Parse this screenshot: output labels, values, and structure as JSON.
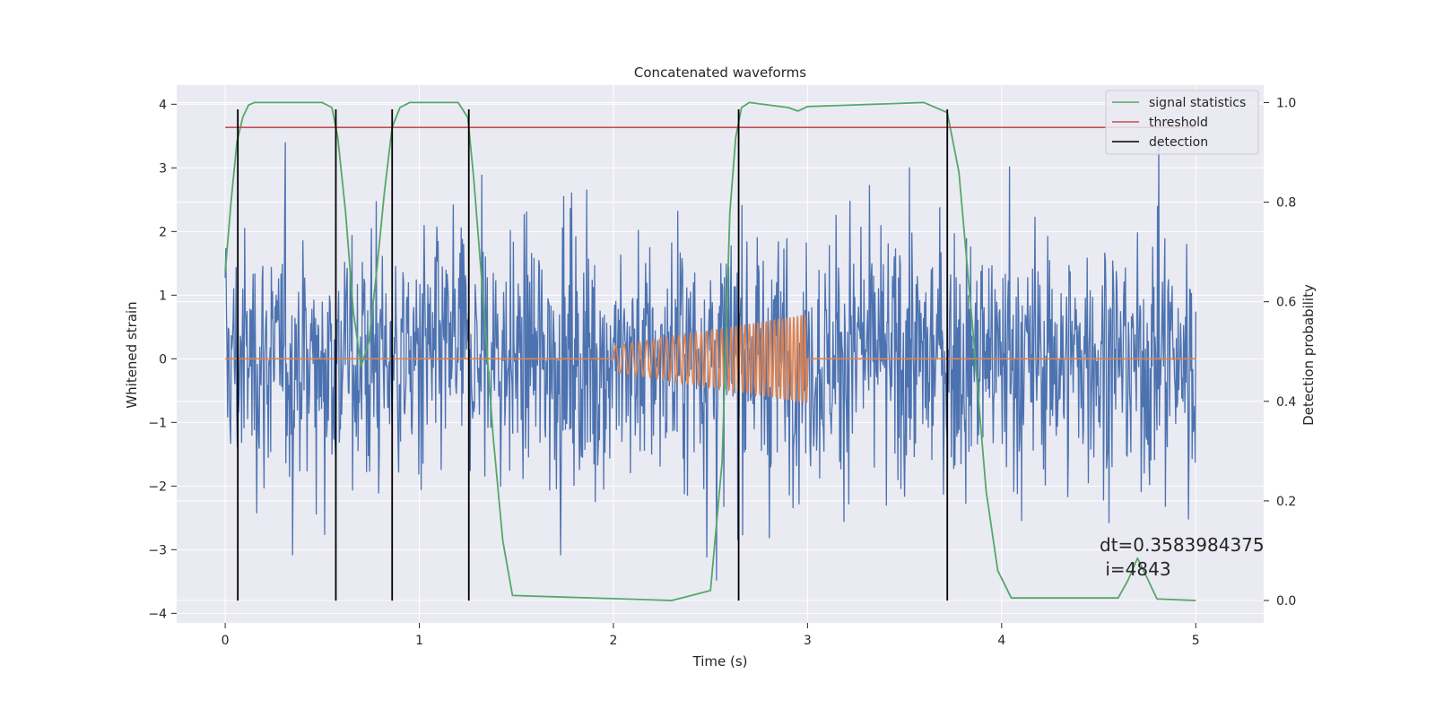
{
  "chart_data": {
    "type": "line",
    "title": "Concatenated waveforms",
    "xlabel": "Time (s)",
    "ylabel": "Whitened strain",
    "y2label": "Detection probability",
    "xlim": [
      -0.25,
      5.35
    ],
    "ylim": [
      -4.15,
      4.3
    ],
    "y2lim": [
      -0.045,
      1.035
    ],
    "xticks": [
      0,
      1,
      2,
      3,
      4,
      5
    ],
    "yticks": [
      -4,
      -3,
      -2,
      -1,
      0,
      1,
      2,
      3,
      4
    ],
    "y2ticks": [
      0.0,
      0.2,
      0.4,
      0.6,
      0.8,
      1.0
    ],
    "x_tick_labels": [
      "0",
      "1",
      "2",
      "3",
      "4",
      "5"
    ],
    "y_tick_labels": [
      "−4",
      "−3",
      "−2",
      "−1",
      "0",
      "1",
      "2",
      "3",
      "4"
    ],
    "y2_tick_labels": [
      "0.0",
      "0.2",
      "0.4",
      "0.6",
      "0.8",
      "1.0"
    ],
    "grid": true,
    "legend_position": "top-right",
    "colors": {
      "strain": "#4c72b0",
      "injected": "#dd8452",
      "signal_statistics": "#55a868",
      "threshold": "#c44e52",
      "detection": "#000000",
      "plot_bg": "#eaeaf2",
      "grid": "#ffffff"
    },
    "legend": [
      {
        "label": "signal statistics",
        "color": "#55a868"
      },
      {
        "label": "threshold",
        "color": "#c44e52"
      },
      {
        "label": "detection",
        "color": "#000000"
      }
    ],
    "strain": {
      "x_range": [
        0,
        5
      ],
      "typical_amplitude": 1.0,
      "peak_range": [
        -3.8,
        3.7
      ],
      "note_visible": "dense noise trace"
    },
    "injected_waveform": {
      "x_range": [
        2.0,
        3.0
      ],
      "amplitude_start": 0.2,
      "amplitude_end": 0.7
    },
    "threshold_value": 0.95,
    "detections_x": [
      0.065,
      0.57,
      0.86,
      1.255,
      2.645,
      3.72
    ],
    "detection_y_span": [
      -3.8,
      3.92
    ],
    "signal_statistics": {
      "x": [
        0.0,
        0.03,
        0.06,
        0.09,
        0.12,
        0.15,
        0.5,
        0.55,
        0.58,
        0.62,
        0.66,
        0.7,
        0.74,
        0.78,
        0.82,
        0.86,
        0.9,
        0.95,
        1.2,
        1.25,
        1.28,
        1.33,
        1.38,
        1.43,
        1.48,
        2.3,
        2.5,
        2.56,
        2.6,
        2.63,
        2.66,
        2.7,
        2.9,
        2.95,
        3.0,
        3.6,
        3.72,
        3.78,
        3.85,
        3.92,
        3.98,
        4.05,
        4.6,
        4.65,
        4.7,
        4.75,
        4.8,
        5.0
      ],
      "y": [
        0.66,
        0.8,
        0.92,
        0.97,
        0.995,
        1.0,
        1.0,
        0.99,
        0.93,
        0.78,
        0.58,
        0.47,
        0.52,
        0.66,
        0.82,
        0.95,
        0.99,
        1.0,
        1.0,
        0.97,
        0.85,
        0.6,
        0.33,
        0.12,
        0.01,
        0.0,
        0.02,
        0.28,
        0.78,
        0.93,
        0.99,
        1.0,
        0.99,
        0.983,
        0.992,
        1.0,
        0.98,
        0.86,
        0.55,
        0.22,
        0.06,
        0.005,
        0.005,
        0.04,
        0.085,
        0.045,
        0.003,
        0.0
      ]
    },
    "annotation": {
      "dt_text": "dt=0.3583984375",
      "i_text": " i=4843"
    }
  }
}
